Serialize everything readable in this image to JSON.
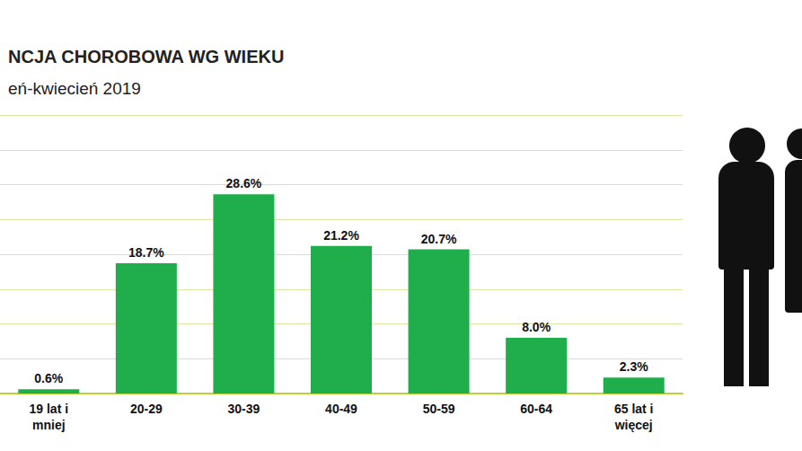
{
  "chart_data": {
    "type": "bar",
    "title": "NCJA CHOROBOWA WG WIEKU",
    "subtitle": "eń-kwiecień 2019",
    "categories": [
      "19 lat i mniej",
      "20-29",
      "30-39",
      "40-49",
      "50-59",
      "60-64",
      "65 lat i więcej"
    ],
    "values": [
      0.6,
      18.7,
      28.6,
      21.2,
      20.7,
      8.0,
      2.3
    ],
    "value_labels": [
      "0.6%",
      "18.7%",
      "28.6%",
      "21.2%",
      "20.7%",
      "8.0%",
      "2.3%"
    ],
    "color": "#1fae4b",
    "ylim": [
      0,
      40
    ],
    "yticks": [
      0,
      5,
      10,
      15,
      20,
      25,
      30,
      35,
      40
    ],
    "grid": true,
    "data_labels": true,
    "tick_labels": "x"
  }
}
